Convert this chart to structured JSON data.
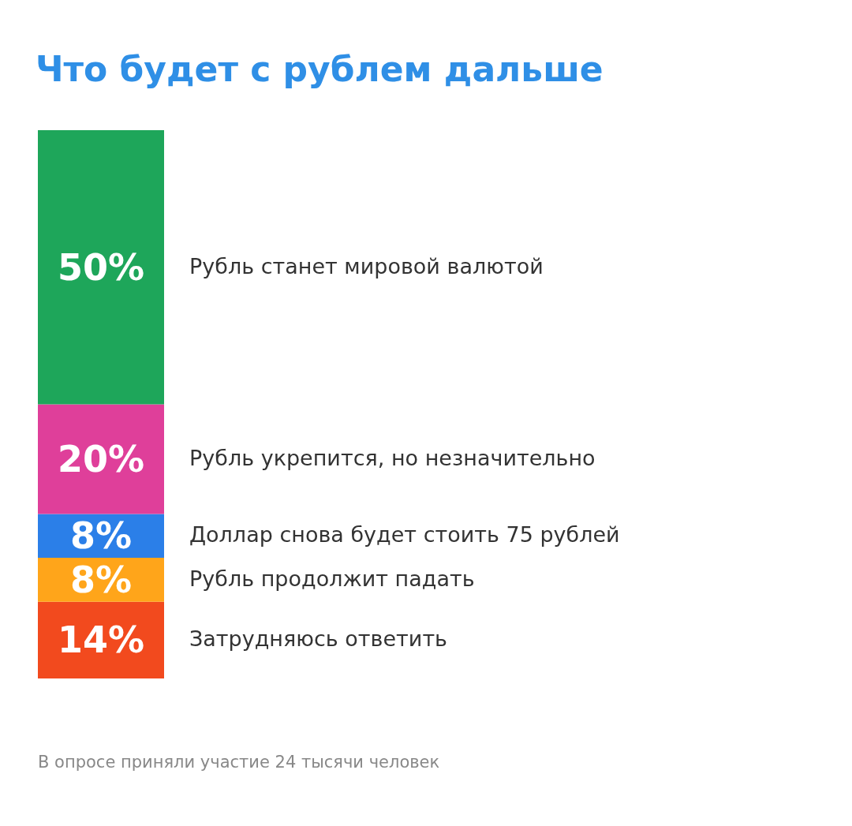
{
  "chart_data": {
    "type": "bar",
    "stacked": true,
    "title": "Что будет с рублем дальше",
    "categories": [
      null
    ],
    "legend": false,
    "series": [
      {
        "name": "Затрудняюсь ответить",
        "color": "#f24a1e",
        "values": [
          14
        ],
        "value_labels": [
          "14%"
        ]
      },
      {
        "name": "Рубль продолжит падать",
        "color": "#ffa51a",
        "values": [
          8
        ],
        "value_labels": [
          "8%"
        ]
      },
      {
        "name": "Доллар снова будет стоить 75 рублей",
        "color": "#2b7fe8",
        "values": [
          8
        ],
        "value_labels": [
          "8%"
        ]
      },
      {
        "name": "Рубль укрепится, но незначительно",
        "color": "#df3f9a",
        "values": [
          20
        ],
        "value_labels": [
          "20%"
        ]
      },
      {
        "name": "Рубль станет мировой валютой",
        "color": "#1ea65a",
        "values": [
          50
        ],
        "value_labels": [
          "50%"
        ]
      }
    ],
    "annotations": [
      "В опросе приняли участие 24 тысячи человек"
    ]
  }
}
